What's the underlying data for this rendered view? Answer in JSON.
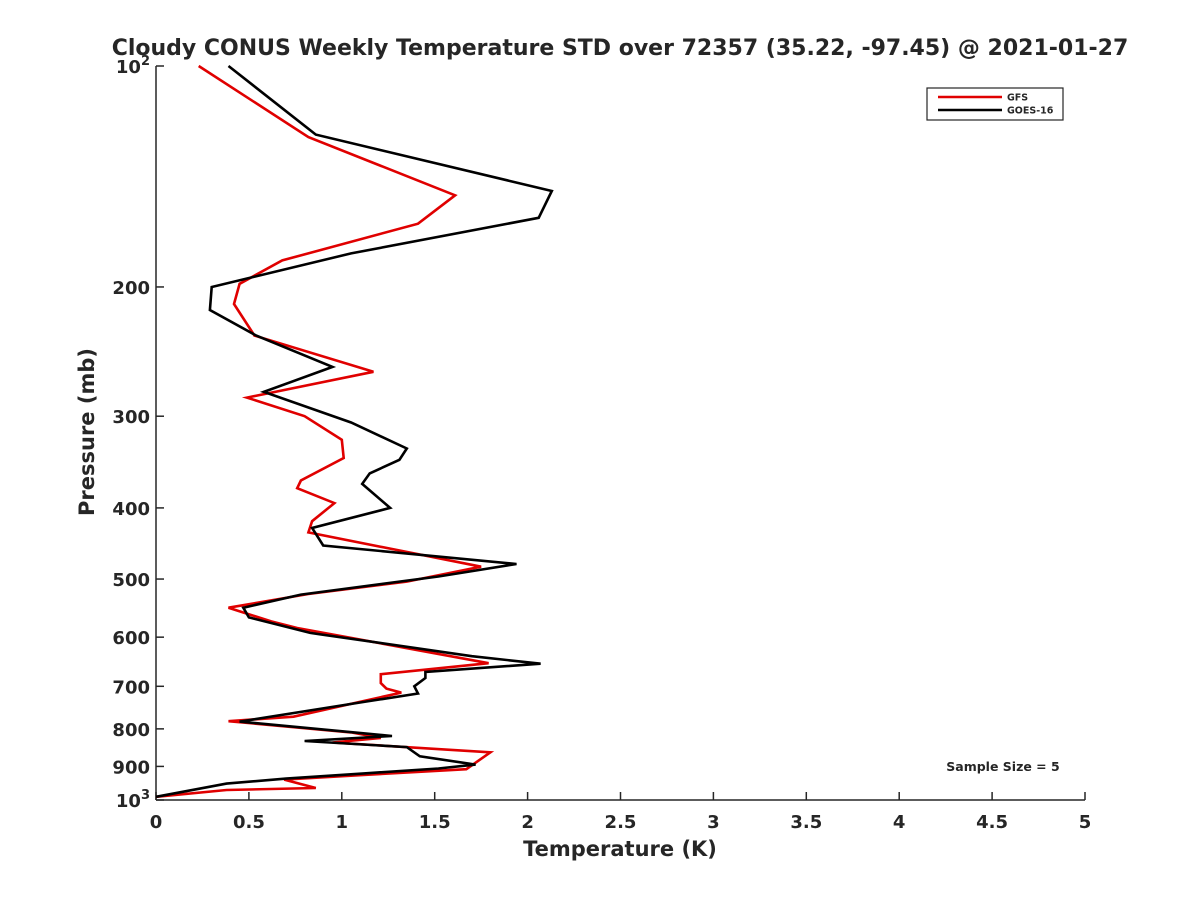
{
  "chart_data": {
    "type": "line",
    "title": "Cloudy CONUS Weekly Temperature STD over 72357 (35.22, -97.45) @ 2021-01-27",
    "xlabel": "Temperature (K)",
    "ylabel": "Pressure (mb)",
    "xlim": [
      0,
      5
    ],
    "ylim": [
      100,
      1000
    ],
    "y_scale": "log",
    "y_reversed": true,
    "x_ticks": [
      {
        "value": 0,
        "label": "0"
      },
      {
        "value": 0.5,
        "label": "0.5"
      },
      {
        "value": 1,
        "label": "1"
      },
      {
        "value": 1.5,
        "label": "1.5"
      },
      {
        "value": 2,
        "label": "2"
      },
      {
        "value": 2.5,
        "label": "2.5"
      },
      {
        "value": 3,
        "label": "3"
      },
      {
        "value": 3.5,
        "label": "3.5"
      },
      {
        "value": 4,
        "label": "4"
      },
      {
        "value": 4.5,
        "label": "4.5"
      },
      {
        "value": 5,
        "label": "5"
      }
    ],
    "y_ticks": [
      {
        "value": 100,
        "label": "10",
        "sup": "2"
      },
      {
        "value": 200,
        "label": "200",
        "sup": ""
      },
      {
        "value": 300,
        "label": "300",
        "sup": ""
      },
      {
        "value": 400,
        "label": "400",
        "sup": ""
      },
      {
        "value": 500,
        "label": "500",
        "sup": ""
      },
      {
        "value": 600,
        "label": "600",
        "sup": ""
      },
      {
        "value": 700,
        "label": "700",
        "sup": ""
      },
      {
        "value": 800,
        "label": "800",
        "sup": ""
      },
      {
        "value": 900,
        "label": "900",
        "sup": ""
      },
      {
        "value": 1000,
        "label": "10",
        "sup": "3"
      }
    ],
    "grid": false,
    "legend_position": "top-right",
    "annotation": "Sample Size = 5",
    "series": [
      {
        "name": "GFS",
        "color": "#e00000",
        "points": [
          [
            0.23,
            100
          ],
          [
            0.82,
            125
          ],
          [
            1.61,
            150
          ],
          [
            1.41,
            164
          ],
          [
            0.68,
            184
          ],
          [
            0.45,
            198
          ],
          [
            0.42,
            211
          ],
          [
            0.53,
            233
          ],
          [
            1.17,
            261
          ],
          [
            0.49,
            283
          ],
          [
            0.8,
            300
          ],
          [
            1.0,
            323
          ],
          [
            1.01,
            342
          ],
          [
            0.78,
            367
          ],
          [
            0.76,
            376
          ],
          [
            0.96,
            394
          ],
          [
            0.84,
            417
          ],
          [
            0.82,
            432
          ],
          [
            1.75,
            481
          ],
          [
            1.35,
            504
          ],
          [
            0.82,
            524
          ],
          [
            0.39,
            547
          ],
          [
            0.62,
            571
          ],
          [
            0.76,
            583
          ],
          [
            1.79,
            651
          ],
          [
            1.21,
            674
          ],
          [
            1.21,
            693
          ],
          [
            1.24,
            705
          ],
          [
            1.32,
            714
          ],
          [
            0.74,
            770
          ],
          [
            0.39,
            781
          ],
          [
            1.05,
            809
          ],
          [
            1.21,
            823
          ],
          [
            0.95,
            835
          ],
          [
            1.8,
            861
          ],
          [
            1.67,
            908
          ],
          [
            1.13,
            924
          ],
          [
            0.69,
            938
          ],
          [
            0.86,
            963
          ],
          [
            0.38,
            969
          ],
          [
            0.0,
            990
          ]
        ]
      },
      {
        "name": "GOES-16",
        "color": "#000000",
        "points": [
          [
            0.39,
            100
          ],
          [
            0.86,
            124
          ],
          [
            2.13,
            148
          ],
          [
            2.06,
            161
          ],
          [
            1.05,
            180
          ],
          [
            0.3,
            200
          ],
          [
            0.29,
            215
          ],
          [
            0.54,
            233
          ],
          [
            0.95,
            257
          ],
          [
            0.58,
            278
          ],
          [
            1.05,
            306
          ],
          [
            1.35,
            332
          ],
          [
            1.31,
            344
          ],
          [
            1.15,
            359
          ],
          [
            1.11,
            371
          ],
          [
            1.26,
            400
          ],
          [
            0.84,
            426
          ],
          [
            0.9,
            450
          ],
          [
            1.94,
            477
          ],
          [
            1.52,
            496
          ],
          [
            0.78,
            525
          ],
          [
            0.47,
            547
          ],
          [
            0.5,
            564
          ],
          [
            0.83,
            592
          ],
          [
            1.7,
            637
          ],
          [
            2.07,
            652
          ],
          [
            1.45,
            669
          ],
          [
            1.45,
            682
          ],
          [
            1.39,
            700
          ],
          [
            1.41,
            716
          ],
          [
            1.12,
            735
          ],
          [
            0.45,
            782
          ],
          [
            1.27,
            818
          ],
          [
            0.8,
            831
          ],
          [
            1.35,
            847
          ],
          [
            1.42,
            872
          ],
          [
            1.72,
            895
          ],
          [
            1.52,
            906
          ],
          [
            1.12,
            920
          ],
          [
            0.7,
            935
          ],
          [
            0.38,
            950
          ],
          [
            0.0,
            990
          ]
        ]
      }
    ]
  }
}
